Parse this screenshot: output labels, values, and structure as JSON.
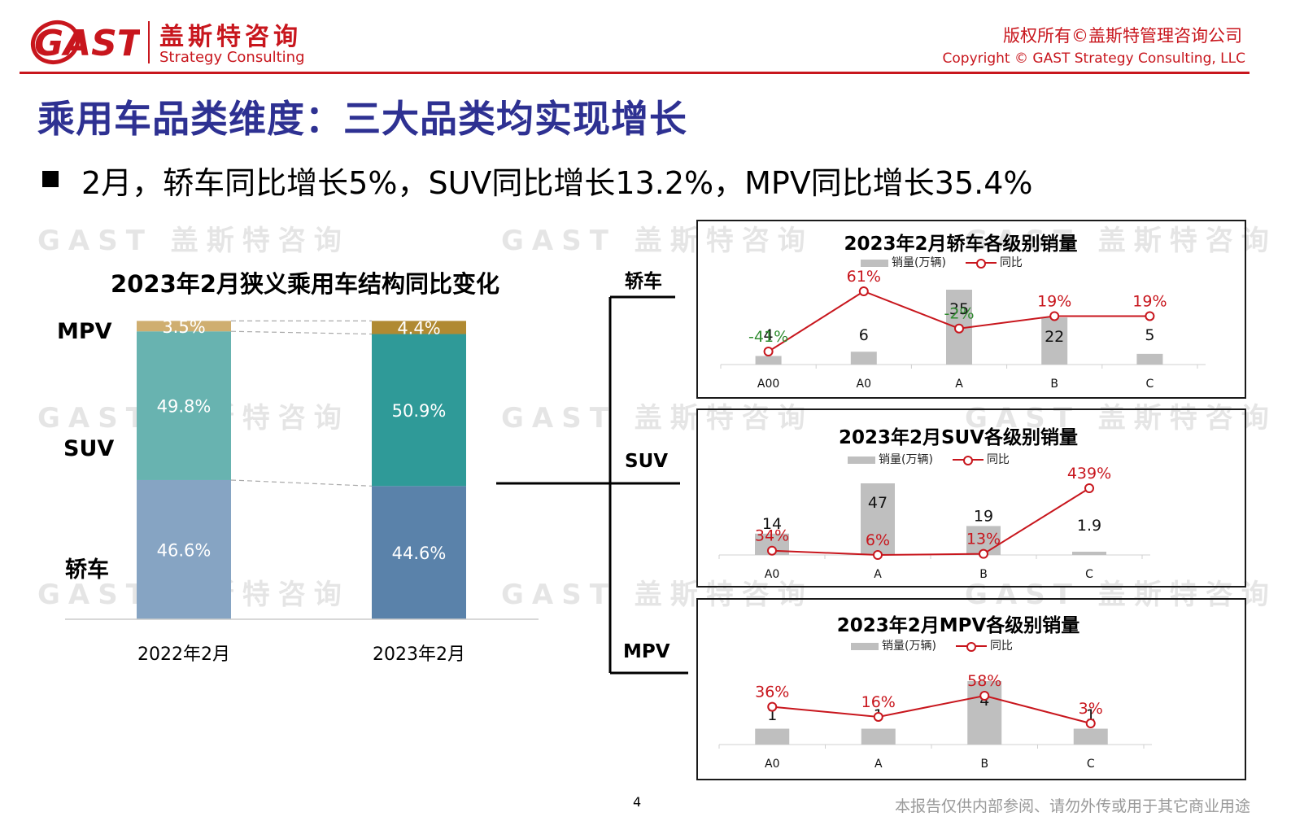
{
  "header": {
    "logo_text": "GAST",
    "company_cn": "盖斯特咨询",
    "company_en": "Strategy Consulting",
    "copyright_cn": "版权所有©盖斯特管理咨询公司",
    "copyright_en": "Copyright © GAST Strategy Consulting, LLC"
  },
  "page_title": "乘用车品类维度：三大品类均实现增长",
  "bullet": "2月，轿车同比增长5%，SUV同比增长13.2%，MPV同比增长35.4%",
  "watermark": "GAST 盖斯特咨询",
  "colors": {
    "brand_red": "#c8161d",
    "title_blue": "#2e3192",
    "bar_gray": "#bfbfbf"
  },
  "chart_data": [
    {
      "type": "bar",
      "stacked": true,
      "normalized": true,
      "title": "2023年2月狭义乘用车结构同比变化",
      "categories": [
        "2022年2月",
        "2023年2月"
      ],
      "series": [
        {
          "name": "轿车",
          "values": [
            46.6,
            44.6
          ],
          "labels": [
            "46.6%",
            "44.6%"
          ],
          "colors": [
            "#86a4c3",
            "#5a82aa"
          ]
        },
        {
          "name": "SUV",
          "values": [
            49.8,
            50.9
          ],
          "labels": [
            "49.8%",
            "50.9%"
          ],
          "colors": [
            "#68b3b0",
            "#2f9a98"
          ]
        },
        {
          "name": "MPV",
          "values": [
            3.5,
            4.4
          ],
          "labels": [
            "3.5%",
            "4.4%"
          ],
          "colors": [
            "#cfae70",
            "#b08a32"
          ]
        }
      ],
      "unit": "%"
    },
    {
      "type": "bar",
      "title": "2023年2月轿车各级别销量",
      "side_label": "轿车",
      "legend": [
        "销量(万辆)",
        "同比"
      ],
      "categories": [
        "A00",
        "A0",
        "A",
        "B",
        "C"
      ],
      "series": [
        {
          "name": "销量(万辆)",
          "values": [
            4,
            6,
            35,
            22,
            5
          ],
          "labels": [
            "4",
            "6",
            "35",
            "22",
            "5"
          ]
        },
        {
          "name": "同比",
          "type": "line",
          "values": [
            -41,
            61,
            -2,
            19,
            19
          ],
          "labels": [
            "-41%",
            "61%",
            "-2%",
            "19%",
            "19%"
          ]
        }
      ]
    },
    {
      "type": "bar",
      "title": "2023年2月SUV各级别销量",
      "side_label": "SUV",
      "legend": [
        "销量(万辆)",
        "同比"
      ],
      "categories": [
        "A0",
        "A",
        "B",
        "C"
      ],
      "series": [
        {
          "name": "销量(万辆)",
          "values": [
            14,
            47,
            19,
            1.9
          ],
          "labels": [
            "14",
            "47",
            "19",
            "1.9"
          ]
        },
        {
          "name": "同比",
          "type": "line",
          "values": [
            34,
            6,
            13,
            439
          ],
          "labels": [
            "34%",
            "6%",
            "13%",
            "439%"
          ]
        }
      ]
    },
    {
      "type": "bar",
      "title": "2023年2月MPV各级别销量",
      "side_label": "MPV",
      "legend": [
        "销量(万辆)",
        "同比"
      ],
      "categories": [
        "A0",
        "A",
        "B",
        "C"
      ],
      "series": [
        {
          "name": "销量(万辆)",
          "values": [
            1,
            1,
            4,
            1
          ],
          "labels": [
            "1",
            "1",
            "4",
            "1"
          ]
        },
        {
          "name": "同比",
          "type": "line",
          "values": [
            36,
            16,
            58,
            3
          ],
          "labels": [
            "36%",
            "16%",
            "58%",
            "3%"
          ]
        }
      ]
    }
  ],
  "footer": {
    "page_number": "4",
    "note": "本报告仅供内部参阅、请勿外传或用于其它商业用途"
  }
}
